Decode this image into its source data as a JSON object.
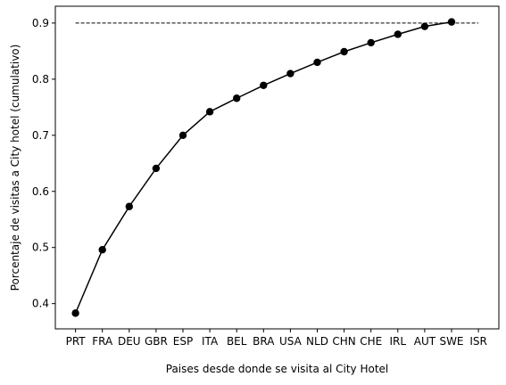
{
  "chart_data": {
    "type": "line",
    "xlabel": "Paises desde donde se visita al City Hotel",
    "ylabel": "Porcentaje de visitas a City hotel (cumulativo)",
    "categories": [
      "PRT",
      "FRA",
      "DEU",
      "GBR",
      "ESP",
      "ITA",
      "BEL",
      "BRA",
      "USA",
      "NLD",
      "CHN",
      "CHE",
      "IRL",
      "AUT",
      "SWE",
      "ISR"
    ],
    "series": [
      {
        "values": [
          0.383,
          0.496,
          0.573,
          0.641,
          0.7,
          0.742,
          0.766,
          0.789,
          0.81,
          0.83,
          0.849,
          0.865,
          0.88,
          0.894,
          0.902,
          null
        ],
        "color": "#000000"
      }
    ],
    "reference_line": {
      "y": 0.9,
      "style": "dashed",
      "color": "#000000"
    },
    "ylim": [
      0.355,
      0.93
    ],
    "yticks": [
      0.4,
      0.5,
      0.6,
      0.7,
      0.8,
      0.9
    ],
    "ytick_labels": [
      "0.4",
      "0.5",
      "0.6",
      "0.7",
      "0.8",
      "0.9"
    ],
    "grid": false,
    "legend": "none"
  }
}
